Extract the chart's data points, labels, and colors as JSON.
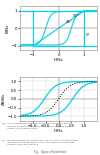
{
  "background": "#ffffff",
  "cyan_color": "#00d4e8",
  "dark_color": "#222222",
  "text_color": "#555555",
  "grid_color": "#cccccc",
  "top_chart": {
    "ylabel": "B/Bs",
    "xlabel": "H/Hs",
    "ylim": [
      -1.25,
      1.25
    ],
    "xlim": [
      -1.5,
      1.5
    ],
    "yticks": [
      -1,
      0,
      1
    ],
    "xticks": [
      -1,
      0,
      1
    ],
    "label_90": "90°",
    "label_45": "45°",
    "label_0": "0°"
  },
  "bottom_chart": {
    "ylabel": "ΔB/Bs",
    "xlabel": "H/Hs",
    "ylim": [
      -1.25,
      1.25
    ],
    "xlim": [
      -1.5,
      1.5
    ],
    "yticks": [
      -1.0,
      -0.5,
      0,
      0.5,
      1.0
    ],
    "xticks": [
      -1.0,
      -0.5,
      0,
      0.5,
      1.0
    ]
  },
  "caption_a": "(a)  cycles d'hystérésis associés à la rotation uniforme d'une\n       barrière uniforme pour trois orientations du champ d'par\n       rapport à la direction facile",
  "caption_b": "(b)  courbes de première aiméntation (en noir) et cycle d'hystérésis\n       des particules électriques, molles, les directions faciles étant\n       celentes à fraction amont d",
  "fig_label": "Fig.  figure d'hystérésis"
}
